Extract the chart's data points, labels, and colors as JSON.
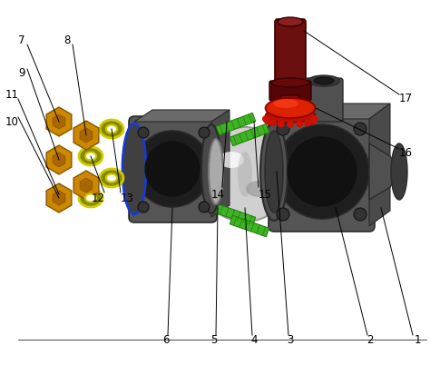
{
  "bg_color": "#ffffff",
  "valve_body_color": "#4a4a4a",
  "valve_body_light": "#6a6a6a",
  "valve_body_dark": "#2a2a2a",
  "valve_body_mid": "#555555",
  "ball_color": "#d0d0d0",
  "ball_highlight": "#f0f0f0",
  "ball_shadow": "#888888",
  "green_bolt_color": "#3db523",
  "green_bolt_dark": "#2a8010",
  "nut_color": "#cc8800",
  "nut_dark": "#885500",
  "washer_color": "#cccc00",
  "washer_dark": "#888800",
  "stem_color": "#6b0f0f",
  "stem_light": "#8b2020",
  "handle_color": "#dd2200",
  "handle_light": "#ff4422",
  "blue_ring_color": "#1a3acc",
  "seat_color": "#aaaaaa",
  "flange_color": "#3a3a3a",
  "pipe_color": "#5a5a5a"
}
